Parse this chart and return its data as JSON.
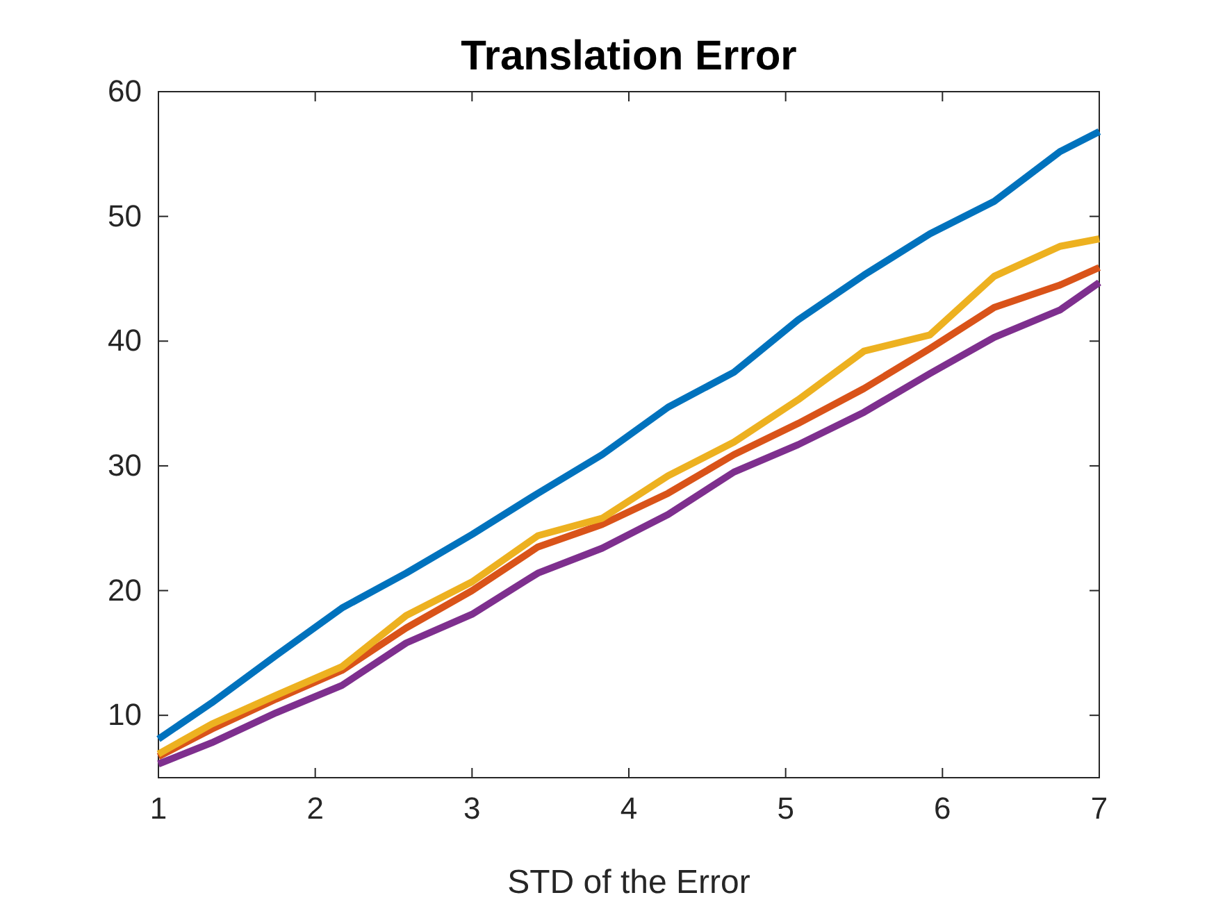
{
  "chart_data": {
    "type": "line",
    "title": "Translation Error",
    "xlabel": "STD of the Error",
    "x": [
      1,
      1.34,
      1.75,
      2.17,
      2.58,
      3,
      3.42,
      3.83,
      4.25,
      4.67,
      5.08,
      5.5,
      5.92,
      6.33,
      6.75,
      7
    ],
    "series": [
      {
        "color": "#0072bd",
        "values": [
          8.1,
          11.0,
          14.8,
          18.6,
          21.4,
          24.5,
          27.8,
          30.9,
          34.7,
          37.5,
          41.7,
          45.3,
          48.6,
          51.2,
          55.2,
          56.8
        ]
      },
      {
        "color": "#d95319",
        "values": [
          6.7,
          8.9,
          11.3,
          13.6,
          17.0,
          20.0,
          23.5,
          25.3,
          27.8,
          30.9,
          33.4,
          36.2,
          39.4,
          42.7,
          44.5,
          45.9
        ]
      },
      {
        "color": "#edb120",
        "values": [
          6.9,
          9.3,
          11.6,
          13.9,
          18.0,
          20.7,
          24.4,
          25.8,
          29.2,
          31.9,
          35.3,
          39.2,
          40.5,
          45.2,
          47.6,
          48.2
        ]
      },
      {
        "color": "#7e2f8e",
        "values": [
          6.1,
          7.8,
          10.2,
          12.4,
          15.8,
          18.1,
          21.4,
          23.4,
          26.1,
          29.5,
          31.7,
          34.3,
          37.4,
          40.3,
          42.5,
          44.7
        ]
      }
    ],
    "xlim": [
      1,
      7
    ],
    "xticks": [
      1,
      2,
      3,
      4,
      5,
      6,
      7
    ],
    "ylim": [
      5,
      60
    ],
    "yticks": [
      10,
      20,
      30,
      40,
      50,
      60
    ],
    "grid": false,
    "legend": false,
    "line_style": "solid",
    "marker": "none"
  }
}
